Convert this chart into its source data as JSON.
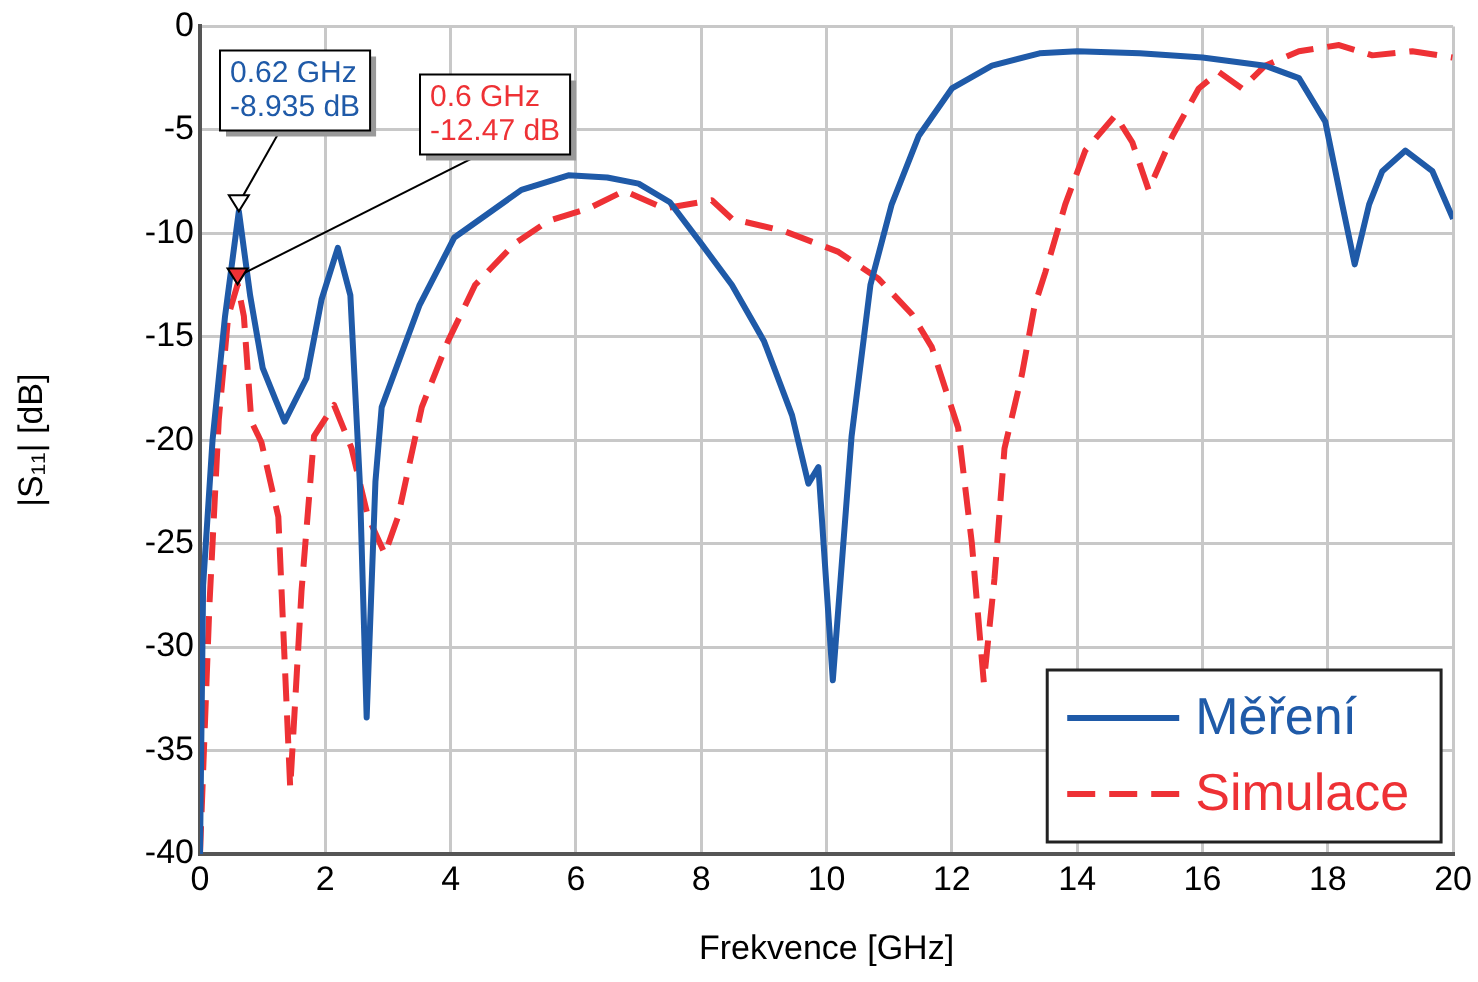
{
  "chart_data": {
    "type": "line",
    "xlabel": "Frekvence [GHz]",
    "ylabel": "|S₁₁| [dB]",
    "xlim": [
      0,
      20
    ],
    "xticks": [
      0,
      2,
      4,
      6,
      8,
      10,
      12,
      14,
      16,
      18,
      20
    ],
    "ylim": [
      -40,
      0
    ],
    "yticks": [
      -40,
      -35,
      -30,
      -25,
      -20,
      -15,
      -10,
      -5,
      0
    ],
    "grid": true,
    "legend": "bottom right",
    "marker": "none",
    "series": [
      {
        "name": "Měření",
        "color": "#1f5aa8",
        "line_style": "solid",
        "x": [
          0,
          0.05,
          0.2,
          0.4,
          0.62,
          0.8,
          1.0,
          1.2,
          1.35,
          1.7,
          1.94,
          2.2,
          2.4,
          2.55,
          2.66,
          2.8,
          2.9,
          3.5,
          4.06,
          5.13,
          5.88,
          6.5,
          7.0,
          7.5,
          8.0,
          8.49,
          9.0,
          9.45,
          9.71,
          9.87,
          10.1,
          10.4,
          10.7,
          11.04,
          11.47,
          12.0,
          12.64,
          13.4,
          14,
          15,
          16,
          17.0,
          17.54,
          17.96,
          18.23,
          18.43,
          18.66,
          18.87,
          19.24,
          19.67,
          20
        ],
        "values": [
          -40,
          -27,
          -20,
          -14,
          -8.935,
          -13,
          -16.5,
          -18,
          -19.1,
          -17,
          -13.2,
          -10.7,
          -13,
          -22,
          -33.4,
          -22,
          -18.4,
          -13.5,
          -10.2,
          -7.9,
          -7.2,
          -7.3,
          -7.6,
          -8.5,
          -10.5,
          -12.5,
          -15.2,
          -18.8,
          -22.1,
          -21.3,
          -31.6,
          -19.8,
          -12.5,
          -8.6,
          -5.3,
          -3.0,
          -1.9,
          -1.3,
          -1.2,
          -1.3,
          -1.5,
          -1.9,
          -2.5,
          -4.6,
          -8.6,
          -11.5,
          -8.6,
          -7,
          -6.0,
          -7,
          -9.3
        ]
      },
      {
        "name": "Simulace",
        "color": "#ee3135",
        "line_style": "dashed",
        "x": [
          0,
          0.15,
          0.3,
          0.45,
          0.6,
          0.7,
          0.82,
          0.98,
          1.25,
          1.44,
          1.62,
          1.82,
          2.14,
          2.42,
          2.68,
          2.95,
          3.16,
          3.54,
          3.96,
          4.39,
          5.02,
          5.56,
          6.2,
          6.77,
          7.41,
          8.17,
          8.49,
          9.33,
          10.19,
          10.83,
          11.36,
          11.68,
          12.1,
          12.32,
          12.51,
          12.68,
          12.84,
          13.12,
          13.32,
          13.49,
          13.81,
          14.13,
          14.61,
          14.88,
          15.14,
          15.52,
          15.94,
          16.26,
          16.63,
          17.0,
          17.54,
          18.18,
          18.71,
          19.35,
          19.99
        ],
        "values": [
          -40,
          -28,
          -19,
          -14,
          -12.47,
          -14,
          -19.1,
          -20.1,
          -23.7,
          -36.8,
          -27.3,
          -19.8,
          -18.3,
          -20.4,
          -23.7,
          -25.5,
          -23.7,
          -18.4,
          -15.2,
          -12.5,
          -10.5,
          -9.4,
          -8.8,
          -7.95,
          -8.8,
          -8.4,
          -9.3,
          -9.9,
          -10.9,
          -12.2,
          -13.9,
          -15.5,
          -19.4,
          -25,
          -31.7,
          -26.7,
          -20.4,
          -16.8,
          -13.5,
          -11.9,
          -8.6,
          -6.0,
          -4.3,
          -5.6,
          -7.9,
          -5.3,
          -3.0,
          -2.2,
          -3.0,
          -1.9,
          -1.2,
          -0.9,
          -1.4,
          -1.2,
          -1.5
        ]
      }
    ],
    "annotations": [
      {
        "text": "0.62 GHz\n-8.935 dB",
        "x": 0.62,
        "y": -8.935
      },
      {
        "text": "0.6 GHz\n-12.47 dB",
        "x": 0.6,
        "y": -12.47
      }
    ]
  }
}
